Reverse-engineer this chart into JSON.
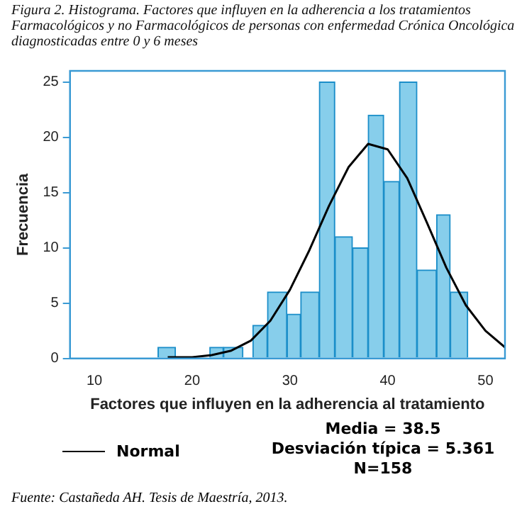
{
  "chart_data": {
    "type": "histogram",
    "title": "Figura 2. Histograma. Factores que influyen en la adherencia a los tratamientos Farmacológicos y no Farmacológicos de personas con enfermedad Crónica Oncológica diagnosticadas entre 0 y 6 meses",
    "xlabel": "Factores que influyen en la adherencia al tratamiento",
    "ylabel": "Frecuencia",
    "bins": [
      16.5,
      18.3,
      21.8,
      23.2,
      25.2,
      26.2,
      27.7,
      29.7,
      31.1,
      33.0,
      34.6,
      36.4,
      38.0,
      39.6,
      41.2,
      43.0,
      45.0,
      46.4,
      48.2
    ],
    "series": [
      {
        "color": "#87ceeb",
        "values": [
          1,
          0,
          1,
          1,
          0,
          3,
          6,
          4,
          6,
          25,
          11,
          10,
          22,
          16,
          25,
          8,
          13,
          6
        ]
      },
      {
        "type": "line",
        "name": "Normal",
        "color": "#000000",
        "x": [
          17.5,
          20,
          22,
          24,
          26,
          28,
          30,
          32,
          34,
          36,
          38,
          40,
          42,
          44,
          46,
          48,
          50,
          52
        ],
        "values": [
          0.1,
          0.1,
          0.3,
          0.7,
          1.6,
          3.4,
          6.2,
          9.8,
          13.8,
          17.3,
          19.4,
          18.9,
          16.3,
          12.3,
          8.2,
          4.8,
          2.5,
          1.0
        ]
      }
    ],
    "xlim": [
      7.5,
      52
    ],
    "xticks": [
      10,
      20,
      30,
      40,
      50
    ],
    "ylim": [
      0,
      26
    ],
    "yticks": [
      0,
      5,
      10,
      15,
      20,
      25
    ],
    "grid": false,
    "legend": "bottom left",
    "marker": "none",
    "line_style": "solid",
    "annotations": [
      "Media = 38.5",
      "Desviación típica = 5.361",
      "N=158",
      "Fuente: Castañeda AH. Tesis de Maestría, 2013."
    ]
  }
}
